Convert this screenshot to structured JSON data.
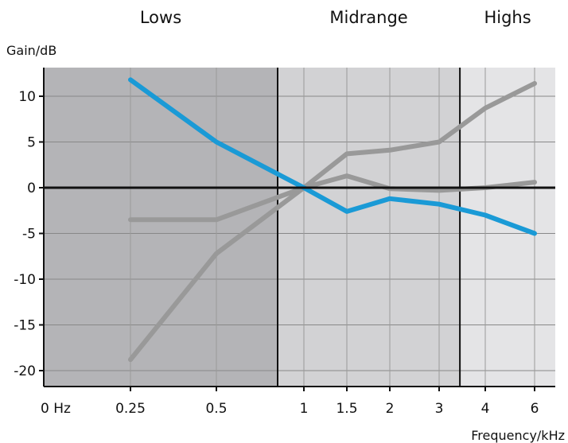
{
  "chart_data": {
    "type": "line",
    "title": "",
    "ylabel": "Gain/dB",
    "xlabel": "Frequency/kHz",
    "ylim": [
      -22,
      13.5
    ],
    "yticks": [
      10,
      5,
      0,
      -5,
      -10,
      -15,
      -20
    ],
    "x_tick_labels": [
      "0 Hz",
      "0.25",
      "0.5",
      "1",
      "1.5",
      "2",
      "3",
      "4",
      "6"
    ],
    "bands": [
      {
        "label": "Lows",
        "from_tick": 0,
        "to_tick": 2.7,
        "color": "#b4b4b7"
      },
      {
        "label": "Midrange",
        "from_tick": 2.7,
        "to_tick": 6.45,
        "color": "#d2d2d4"
      },
      {
        "label": "Highs",
        "from_tick": 6.45,
        "to_tick": 8.35,
        "color": "#e4e4e6"
      }
    ],
    "series": [
      {
        "color": "#1a9ad6",
        "values": [
          null,
          11.8,
          5.0,
          0.0,
          -2.6,
          -1.2,
          -1.8,
          -3.0,
          -5.0
        ]
      },
      {
        "color": "#999999",
        "values": [
          null,
          -3.5,
          -3.5,
          0.0,
          1.3,
          -0.1,
          -0.3,
          0.0,
          0.6
        ]
      },
      {
        "color": "#999999",
        "values": [
          null,
          -18.8,
          -7.2,
          0.0,
          3.7,
          4.1,
          5.0,
          8.7,
          11.4
        ]
      }
    ]
  }
}
